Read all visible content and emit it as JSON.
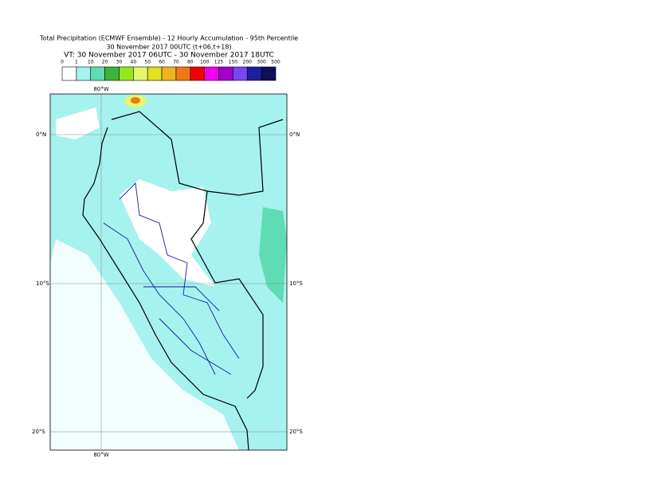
{
  "header": {
    "title": "Total Precipitation (ECMWF Ensemble) - 12 Hourly Accumulation - 95th Percentile",
    "base": "30 November 2017 00UTC (t+06,t+18)",
    "valid": "VT: 30 November 2017 06UTC - 30 November 2017 18UTC"
  },
  "legend": {
    "labels": [
      "0",
      "1",
      "10",
      "20",
      "30",
      "40",
      "50",
      "60",
      "70",
      "80",
      "100",
      "125",
      "150",
      "200",
      "300",
      "500"
    ],
    "colors": [
      "#ffffff",
      "#a6f2ee",
      "#5fdcb4",
      "#3cb43c",
      "#96e61e",
      "#e6f56e",
      "#e1e11e",
      "#f0b41e",
      "#f07814",
      "#f00000",
      "#f000f0",
      "#a000c8",
      "#7846f0",
      "#1e1ea0",
      "#0f0f5a"
    ]
  },
  "map": {
    "lat_labels": [
      "0°N",
      "10°S",
      "20°S"
    ],
    "lon_labels": [
      "80°W"
    ]
  }
}
